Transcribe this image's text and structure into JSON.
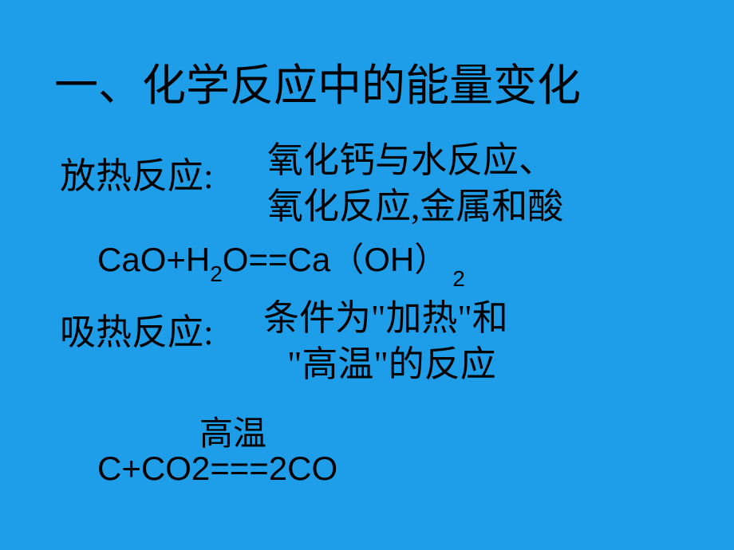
{
  "background_color": "#1e9ee8",
  "text_color": "#000000",
  "title": "一、化学反应中的能量变化",
  "exothermic": {
    "label": "放热反应:",
    "description_line1": "氧化钙与水反应、",
    "description_line2": "氧化反应,金属和酸",
    "equation_parts": {
      "p1": "CaO+H",
      "sub1": "2",
      "p2": "O==Ca",
      "paren_open": "（",
      "p3": "OH",
      "paren_close": "）",
      "sub2": "2"
    }
  },
  "endothermic": {
    "label": "吸热反应:",
    "description_line1": "条件为\"加热\"和",
    "description_line2": "\"高温\"的反应",
    "condition": "高温",
    "equation": "C+CO2===2CO"
  },
  "font_sizes": {
    "title": 55,
    "body": 45,
    "equation": 42,
    "subscript": 28
  }
}
